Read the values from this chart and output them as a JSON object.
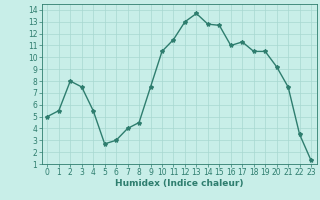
{
  "x": [
    0,
    1,
    2,
    3,
    4,
    5,
    6,
    7,
    8,
    9,
    10,
    11,
    12,
    13,
    14,
    15,
    16,
    17,
    18,
    19,
    20,
    21,
    22,
    23
  ],
  "y": [
    5,
    5.5,
    8,
    7.5,
    5.5,
    2.7,
    3,
    4,
    4.5,
    7.5,
    10.5,
    11.5,
    13,
    13.7,
    12.8,
    12.7,
    11,
    11.3,
    10.5,
    10.5,
    9.2,
    7.5,
    3.5,
    1.3
  ],
  "line_color": "#2e7d6e",
  "marker": "*",
  "marker_size": 3,
  "bg_color": "#c8eee8",
  "grid_color": "#a8d8d0",
  "xlabel": "Humidex (Indice chaleur)",
  "xlim": [
    -0.5,
    23.5
  ],
  "ylim": [
    1,
    14.5
  ],
  "yticks": [
    1,
    2,
    3,
    4,
    5,
    6,
    7,
    8,
    9,
    10,
    11,
    12,
    13,
    14
  ],
  "xticks": [
    0,
    1,
    2,
    3,
    4,
    5,
    6,
    7,
    8,
    9,
    10,
    11,
    12,
    13,
    14,
    15,
    16,
    17,
    18,
    19,
    20,
    21,
    22,
    23
  ],
  "axis_label_fontsize": 6.5,
  "tick_fontsize": 5.5,
  "line_width": 1.0
}
